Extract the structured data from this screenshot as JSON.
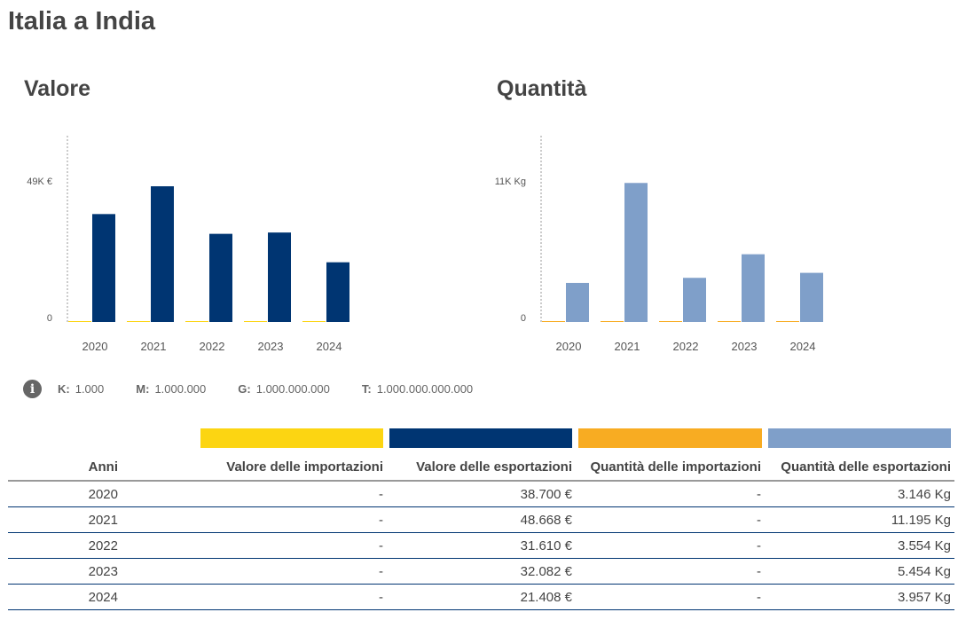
{
  "title": "Italia a India",
  "legend_colors": {
    "import_value": "#fcd512",
    "export_value": "#003572",
    "import_qty": "#f8ac22",
    "export_qty": "#7f9fc9"
  },
  "info": {
    "icon": "info-icon",
    "items": [
      {
        "k": "K:",
        "v": "1.000"
      },
      {
        "k": "M:",
        "v": "1.000.000"
      },
      {
        "k": "G:",
        "v": "1.000.000.000"
      },
      {
        "k": "T:",
        "v": "1.000.000.000.000"
      }
    ]
  },
  "chart_data": [
    {
      "type": "bar",
      "title": "Valore",
      "categories": [
        "2020",
        "2021",
        "2022",
        "2023",
        "2024"
      ],
      "series": [
        {
          "name": "Valore delle importazioni",
          "values": [
            0,
            0,
            0,
            0,
            0
          ],
          "color": "#fcd512"
        },
        {
          "name": "Valore delle esportazioni",
          "values": [
            38700,
            48668,
            31610,
            32082,
            21408
          ],
          "color": "#003572"
        }
      ],
      "yticks": [
        {
          "value": 0,
          "label": "0"
        },
        {
          "value": 49000,
          "label": "49K €"
        }
      ],
      "ylim": [
        0,
        66800
      ]
    },
    {
      "type": "bar",
      "title": "Quantità",
      "categories": [
        "2020",
        "2021",
        "2022",
        "2023",
        "2024"
      ],
      "series": [
        {
          "name": "Quantità delle importazioni",
          "values": [
            0,
            0,
            0,
            0,
            0
          ],
          "color": "#f8ac22"
        },
        {
          "name": "Quantità delle esportazioni",
          "values": [
            3146,
            11195,
            3554,
            5454,
            3957
          ],
          "color": "#7f9fc9"
        }
      ],
      "yticks": [
        {
          "value": 0,
          "label": "0"
        },
        {
          "value": 11000,
          "label": "11K Kg"
        }
      ],
      "ylim": [
        0,
        15000
      ]
    }
  ],
  "table": {
    "headers": [
      "Anni",
      "Valore delle importazioni",
      "Valore delle esportazioni",
      "Quantità delle importazioni",
      "Quantità delle esportazioni"
    ],
    "rows": [
      [
        "2020",
        "-",
        "38.700 €",
        "-",
        "3.146 Kg"
      ],
      [
        "2021",
        "-",
        "48.668 €",
        "-",
        "11.195 Kg"
      ],
      [
        "2022",
        "-",
        "31.610 €",
        "-",
        "3.554 Kg"
      ],
      [
        "2023",
        "-",
        "32.082 €",
        "-",
        "5.454 Kg"
      ],
      [
        "2024",
        "-",
        "21.408 €",
        "-",
        "3.957 Kg"
      ]
    ]
  }
}
